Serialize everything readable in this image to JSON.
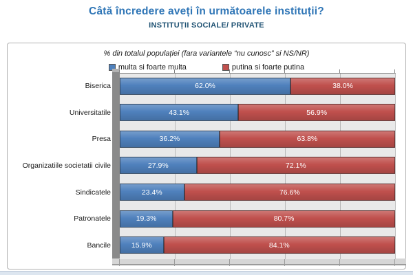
{
  "header": {
    "title": "Câtă încredere aveți în următoarele instituții?",
    "subtitle": "INSTITUȚII SOCIALE/ PRIVATE",
    "title_color": "#2e75b6",
    "subtitle_color": "#1f5273"
  },
  "chart": {
    "note": "% din totalul populației (fara variantele “nu cunosc” si NS/NR)"
  },
  "chart_data": {
    "type": "bar",
    "orientation": "horizontal",
    "stacked": true,
    "title": "Câtă încredere aveți în următoarele instituții?",
    "subtitle": "INSTITUȚII SOCIALE/ PRIVATE",
    "categories": [
      "Biserica",
      "Universitatile",
      "Presa",
      "Organizatiile societatii civile",
      "Sindicatele",
      "Patronatele",
      "Bancile"
    ],
    "series": [
      {
        "name": "multa si foarte multa",
        "color": "#4f81bd",
        "values": [
          62.0,
          43.1,
          36.2,
          27.9,
          23.4,
          19.3,
          15.9
        ]
      },
      {
        "name": "putina si foarte putina",
        "color": "#c0504d",
        "values": [
          38.0,
          56.9,
          63.8,
          72.1,
          76.6,
          80.7,
          84.1
        ]
      }
    ],
    "value_suffix": "%",
    "value_decimals": 1,
    "xlim": [
      0,
      100
    ],
    "gridlines_percent": [
      20,
      40,
      60,
      80
    ],
    "tick_percents": [
      0,
      20,
      40,
      60,
      80,
      100
    ],
    "legend_position": "top",
    "plot_bg": "#e9e9e9",
    "label_color": "#ffffff"
  }
}
